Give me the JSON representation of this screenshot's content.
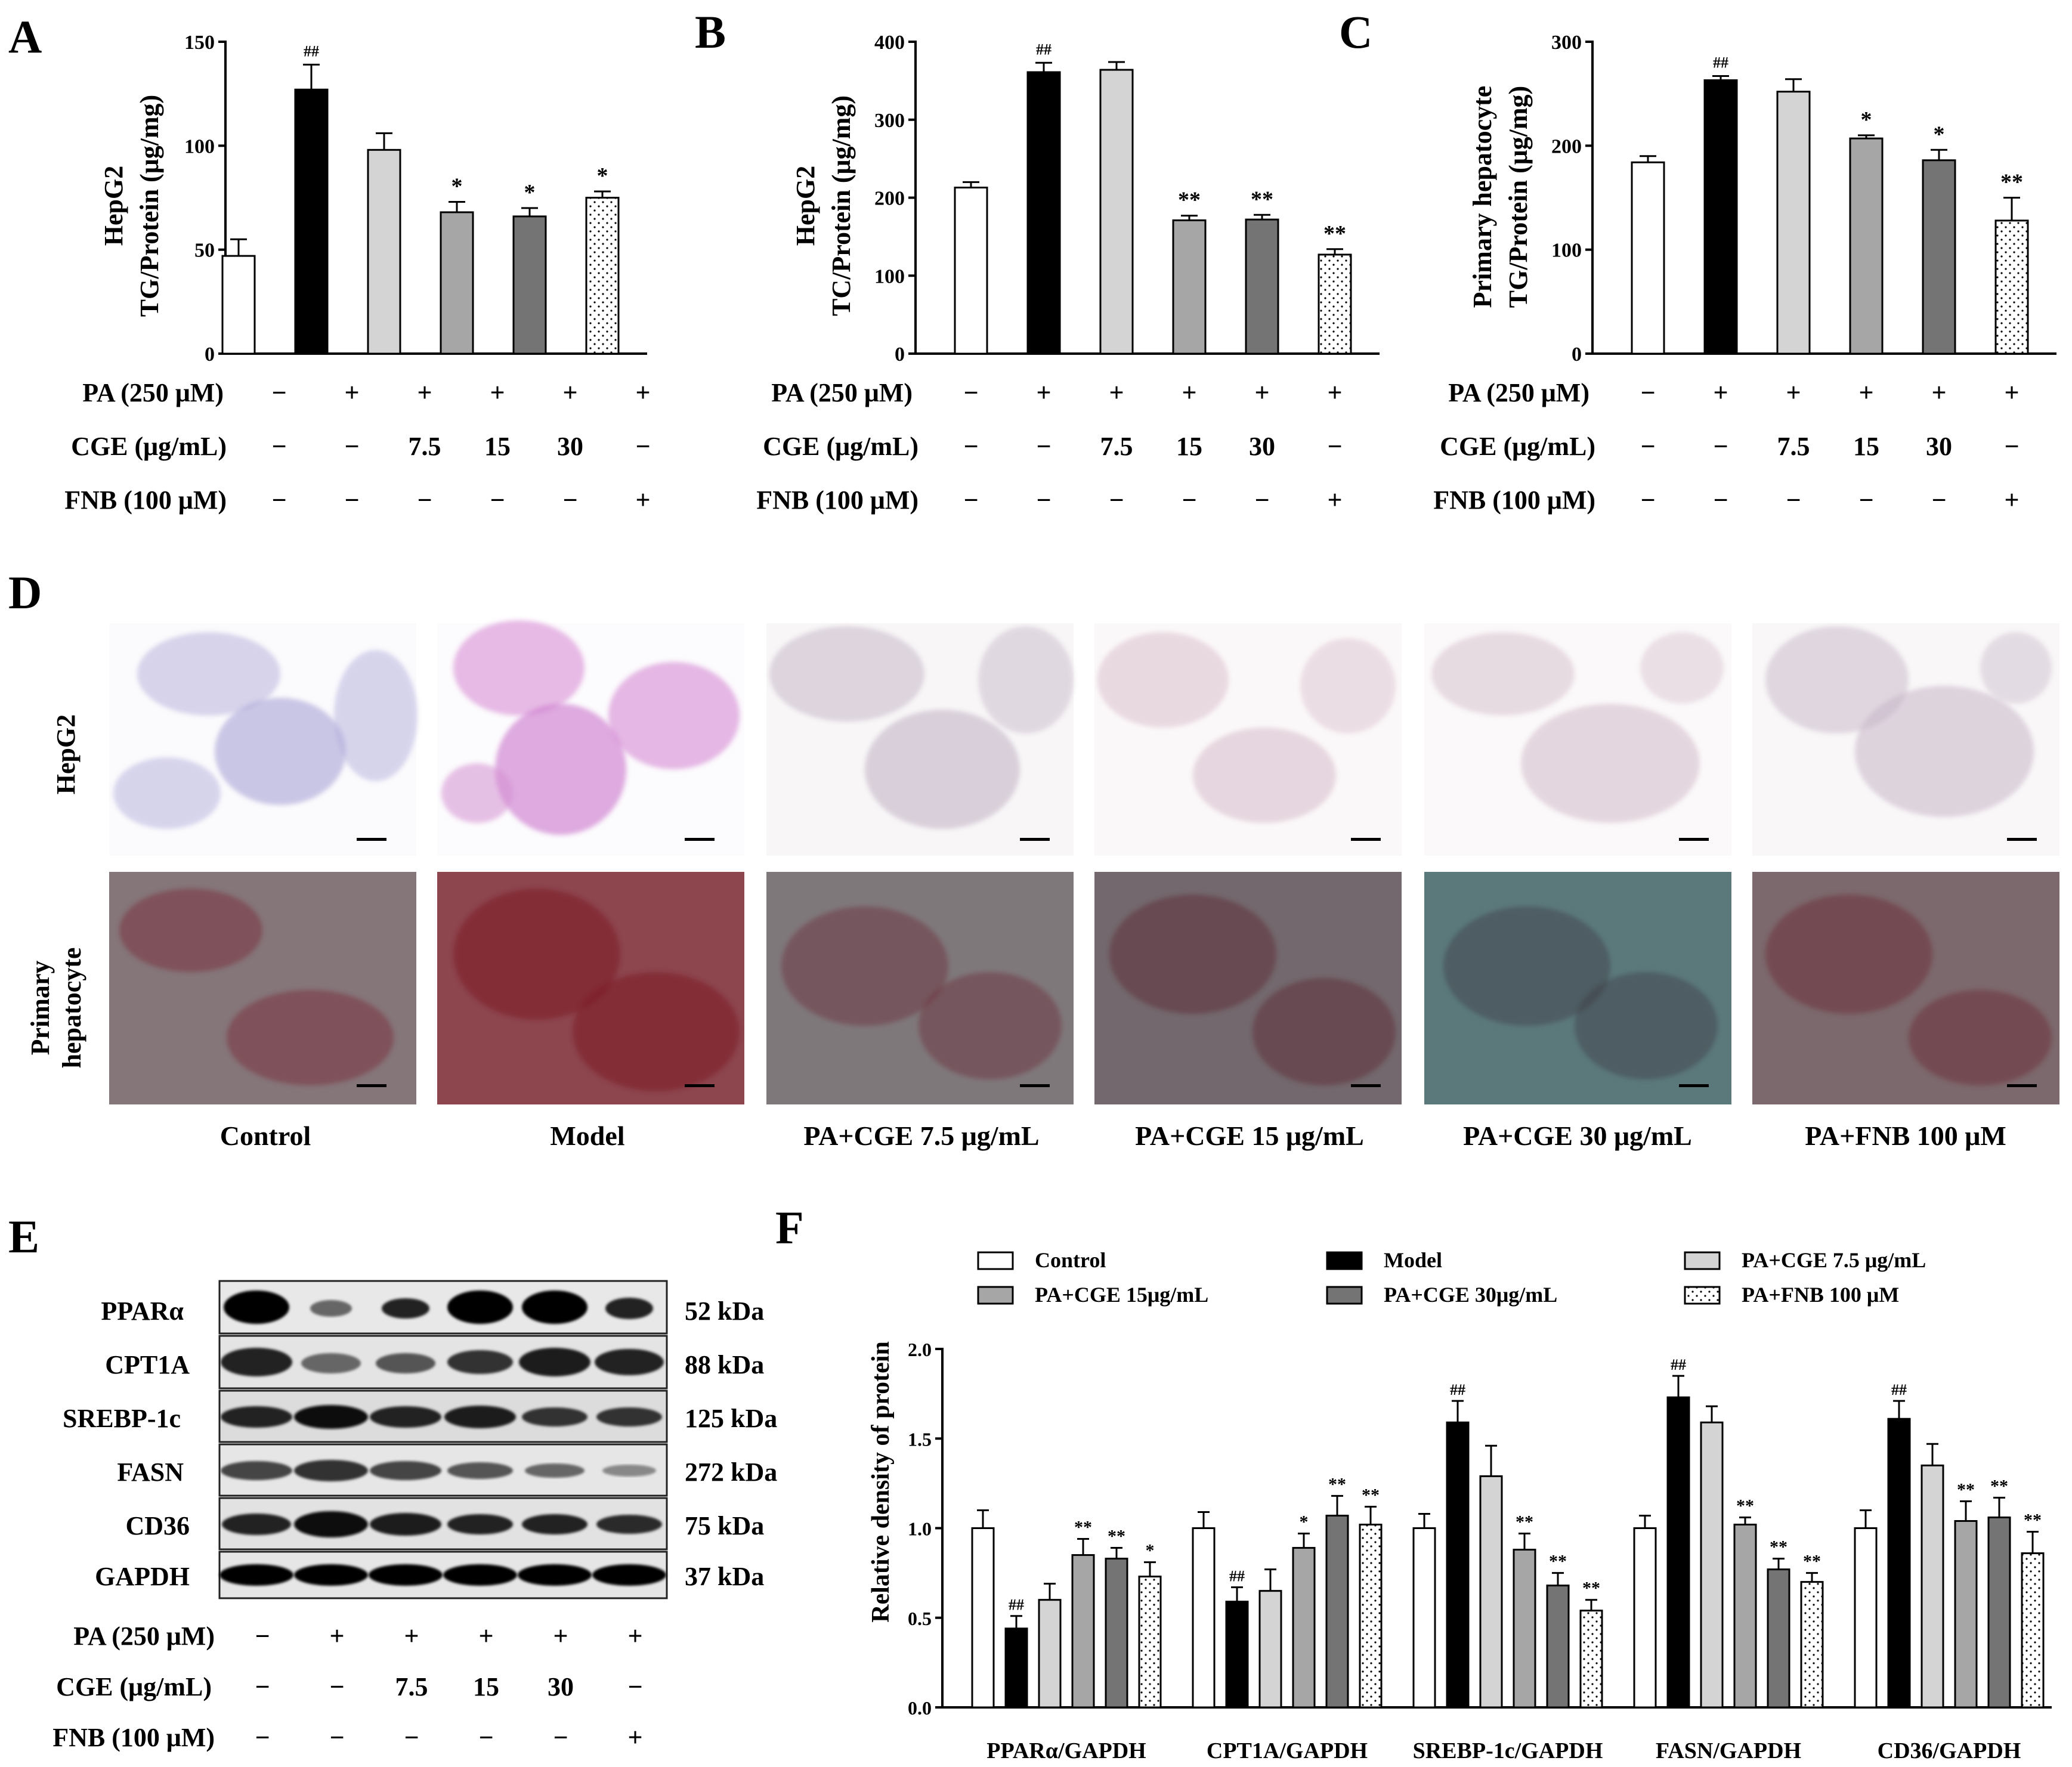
{
  "colors": {
    "control": "#ffffff",
    "model": "#000000",
    "cge_7_5": "#d4d4d4",
    "cge_15": "#a6a6a6",
    "cge_30": "#747474",
    "fnb": "#ffffff"
  },
  "treatment_table": {
    "pa_label": "PA (250 μM)",
    "cge_label": "CGE (μg/mL)",
    "fnb_label": "FNB (100 μM)",
    "pa": [
      "−",
      "+",
      "+",
      "+",
      "+",
      "+"
    ],
    "cge": [
      "−",
      "−",
      "7.5",
      "15",
      "30",
      "−"
    ],
    "fnb": [
      "−",
      "−",
      "−",
      "−",
      "−",
      "+"
    ]
  },
  "chart_data": [
    {
      "panel": "A",
      "type": "bar",
      "ylabel_line1": "HepG2",
      "ylabel_line2": "TG/Protein (μg/mg)",
      "ylim": [
        0,
        150
      ],
      "yticks": [
        "0",
        "50",
        "100",
        "150"
      ],
      "values": [
        47,
        127,
        98,
        68,
        66,
        75
      ],
      "errors": [
        8,
        12,
        8,
        5,
        4,
        3
      ],
      "annotations": [
        "",
        "##",
        "",
        "*",
        "*",
        "*"
      ]
    },
    {
      "panel": "B",
      "type": "bar",
      "ylabel_line1": "HepG2",
      "ylabel_line2": "TC/Protein (μg/mg)",
      "ylim": [
        0,
        400
      ],
      "yticks": [
        "0",
        "100",
        "200",
        "300",
        "400"
      ],
      "values": [
        213,
        361,
        364,
        171,
        172,
        127
      ],
      "errors": [
        7,
        12,
        10,
        6,
        6,
        7
      ],
      "annotations": [
        "",
        "##",
        "",
        "**",
        "**",
        "**"
      ]
    },
    {
      "panel": "C",
      "type": "bar",
      "ylabel_line1": "Primary hepatocyte",
      "ylabel_line2": "TG/Protein (μg/mg)",
      "ylim": [
        0,
        300
      ],
      "yticks": [
        "0",
        "100",
        "200",
        "300"
      ],
      "values": [
        184,
        263,
        252,
        207,
        186,
        128
      ],
      "errors": [
        6,
        4,
        12,
        3,
        10,
        22
      ],
      "annotations": [
        "",
        "##",
        "",
        "*",
        "*",
        "**"
      ]
    },
    {
      "panel": "F",
      "type": "grouped_bar",
      "ylabel": "Relative density of protein",
      "ylim": [
        0,
        2.0
      ],
      "yticks": [
        "0.0",
        "0.5",
        "1.0",
        "1.5",
        "2.0"
      ],
      "categories": [
        "PPARα/GAPDH",
        "CPT1A/GAPDH",
        "SREBP-1c/GAPDH",
        "FASN/GAPDH",
        "CD36/GAPDH"
      ],
      "series": [
        {
          "name": "Control",
          "values": [
            1.0,
            1.0,
            1.0,
            1.0,
            1.0
          ],
          "errors": [
            0.1,
            0.09,
            0.08,
            0.07,
            0.1
          ],
          "annotations": [
            "",
            "",
            "",
            "",
            ""
          ]
        },
        {
          "name": "Model",
          "values": [
            0.44,
            0.59,
            1.59,
            1.73,
            1.61
          ],
          "errors": [
            0.07,
            0.08,
            0.12,
            0.12,
            0.1
          ],
          "annotations": [
            "##",
            "##",
            "##",
            "##",
            "##"
          ]
        },
        {
          "name": "PA+CGE 7.5 μg/mL",
          "values": [
            0.6,
            0.65,
            1.29,
            1.59,
            1.35
          ],
          "errors": [
            0.09,
            0.12,
            0.17,
            0.09,
            0.12
          ],
          "annotations": [
            "",
            "",
            "",
            "",
            ""
          ]
        },
        {
          "name": "PA+CGE 15μg/mL",
          "values": [
            0.85,
            0.89,
            0.88,
            1.02,
            1.04
          ],
          "errors": [
            0.09,
            0.08,
            0.09,
            0.04,
            0.11
          ],
          "annotations": [
            "**",
            "*",
            "**",
            "**",
            "**"
          ]
        },
        {
          "name": "PA+CGE 30μg/mL",
          "values": [
            0.83,
            1.07,
            0.68,
            0.77,
            1.06
          ],
          "errors": [
            0.06,
            0.11,
            0.07,
            0.06,
            0.11
          ],
          "annotations": [
            "**",
            "**",
            "**",
            "**",
            "**"
          ]
        },
        {
          "name": "PA+FNB 100 μM",
          "values": [
            0.73,
            1.02,
            0.54,
            0.7,
            0.86
          ],
          "errors": [
            0.08,
            0.1,
            0.06,
            0.05,
            0.12
          ],
          "annotations": [
            "*",
            "**",
            "**",
            "**",
            "**"
          ]
        }
      ]
    }
  ],
  "panels": {
    "A": "A",
    "B": "B",
    "C": "C",
    "D": "D",
    "E": "E",
    "F": "F"
  },
  "micrographs": {
    "row_labels": [
      "HepG2",
      "Primary",
      "hepatocyte"
    ],
    "column_labels": [
      "Control",
      "Model",
      "PA+CGE 7.5 μg/mL",
      "PA+CGE 15 μg/mL",
      "PA+CGE 30 μg/mL",
      "PA+FNB 100 μM"
    ]
  },
  "western_blot": {
    "proteins": [
      "PPARα",
      "CPT1A",
      "SREBP-1c",
      "FASN",
      "CD36",
      "GAPDH"
    ],
    "kda": [
      "52 kDa",
      "88 kDa",
      "125 kDa",
      "272 kDa",
      "75 kDa",
      "37 kDa"
    ]
  }
}
